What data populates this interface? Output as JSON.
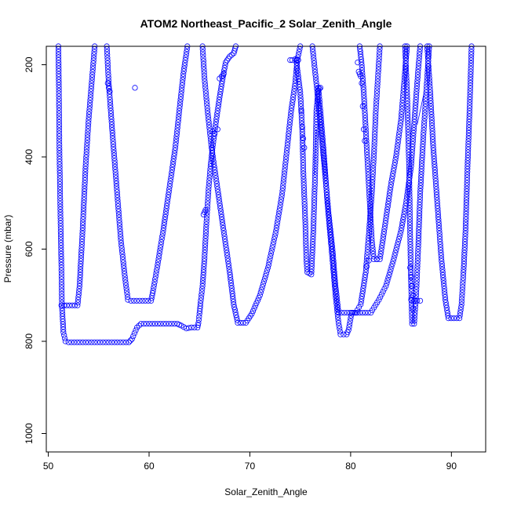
{
  "chart_data": {
    "type": "scatter",
    "title": "ATOM2 Northeast_Pacific_2 Solar_Zenith_Angle",
    "xlabel": "Solar_Zenith_Angle",
    "ylabel": "Pressure (mbar)",
    "xlim": [
      49.8,
      93.4
    ],
    "ylim": [
      1040,
      160
    ],
    "y_reversed": true,
    "x_ticks": [
      50,
      60,
      70,
      80,
      90
    ],
    "y_ticks": [
      200,
      400,
      600,
      800,
      1000
    ],
    "grid": false,
    "legend": "none",
    "marker": "open-circle",
    "color": "#0000ff",
    "series": [
      {
        "path": [
          [
            51.0,
            160
          ],
          [
            51.05,
            250
          ],
          [
            51.1,
            380
          ],
          [
            51.2,
            520
          ],
          [
            51.3,
            640
          ],
          [
            51.35,
            722
          ],
          [
            51.4,
            740
          ],
          [
            51.5,
            780
          ],
          [
            51.7,
            800
          ],
          [
            52.0,
            802
          ],
          [
            54.0,
            802
          ],
          [
            56.0,
            802
          ],
          [
            58.0,
            802
          ],
          [
            58.3,
            795
          ],
          [
            58.8,
            770
          ],
          [
            59.2,
            762
          ],
          [
            62.8,
            762
          ],
          [
            63.2,
            766
          ],
          [
            63.7,
            772
          ],
          [
            64.2,
            770
          ],
          [
            64.8,
            770
          ],
          [
            64.9,
            760
          ],
          [
            65.0,
            740
          ],
          [
            65.1,
            718
          ],
          [
            65.3,
            680
          ],
          [
            65.5,
            620
          ],
          [
            65.7,
            540
          ],
          [
            65.9,
            470
          ],
          [
            66.1,
            420
          ],
          [
            66.3,
            380
          ],
          [
            66.6,
            330
          ],
          [
            67.0,
            270
          ],
          [
            67.3,
            230
          ],
          [
            67.6,
            195
          ],
          [
            68.0,
            182
          ],
          [
            68.4,
            175
          ],
          [
            68.6,
            160
          ]
        ]
      },
      {
        "path": [
          [
            51.3,
            722
          ],
          [
            52.9,
            722
          ],
          [
            53.1,
            680
          ],
          [
            53.4,
            560
          ],
          [
            53.7,
            420
          ],
          [
            54.0,
            320
          ],
          [
            54.3,
            240
          ],
          [
            54.6,
            160
          ]
        ]
      },
      {
        "path": [
          [
            55.8,
            160
          ],
          [
            56.0,
            240
          ],
          [
            56.4,
            360
          ],
          [
            56.8,
            470
          ],
          [
            57.2,
            580
          ],
          [
            57.6,
            660
          ],
          [
            57.9,
            710
          ],
          [
            58.2,
            712
          ],
          [
            60.2,
            712
          ],
          [
            60.4,
            690
          ],
          [
            60.8,
            640
          ],
          [
            61.4,
            560
          ],
          [
            62.0,
            470
          ],
          [
            62.6,
            380
          ],
          [
            63.0,
            300
          ],
          [
            63.4,
            220
          ],
          [
            63.8,
            160
          ]
        ]
      },
      {
        "path": [
          [
            65.3,
            160
          ],
          [
            65.5,
            230
          ],
          [
            65.8,
            300
          ],
          [
            66.2,
            380
          ],
          [
            66.8,
            470
          ],
          [
            67.4,
            560
          ],
          [
            68.0,
            650
          ],
          [
            68.4,
            720
          ],
          [
            68.8,
            760
          ],
          [
            69.6,
            760
          ],
          [
            70.2,
            740
          ],
          [
            71.0,
            700
          ],
          [
            71.8,
            640
          ],
          [
            72.6,
            560
          ],
          [
            73.2,
            480
          ],
          [
            73.7,
            380
          ],
          [
            74.1,
            300
          ],
          [
            74.5,
            240
          ],
          [
            74.7,
            190
          ],
          [
            75.0,
            160
          ]
        ]
      },
      {
        "path": [
          [
            74.6,
            190
          ],
          [
            75.0,
            260
          ],
          [
            75.2,
            340
          ],
          [
            75.3,
            430
          ],
          [
            75.5,
            540
          ],
          [
            75.6,
            620
          ],
          [
            75.7,
            650
          ],
          [
            76.1,
            655
          ],
          [
            76.3,
            560
          ],
          [
            76.5,
            420
          ],
          [
            76.6,
            300
          ],
          [
            76.8,
            250
          ],
          [
            77.0,
            300
          ],
          [
            77.3,
            380
          ],
          [
            77.7,
            500
          ],
          [
            78.1,
            600
          ],
          [
            78.5,
            700
          ],
          [
            78.8,
            760
          ],
          [
            79.0,
            785
          ],
          [
            79.6,
            785
          ],
          [
            79.8,
            775
          ],
          [
            80.1,
            738
          ],
          [
            82.0,
            738
          ],
          [
            82.8,
            710
          ],
          [
            83.5,
            680
          ],
          [
            84.3,
            620
          ],
          [
            85.0,
            560
          ],
          [
            85.5,
            500
          ],
          [
            86.0,
            420
          ],
          [
            86.3,
            330
          ],
          [
            86.6,
            240
          ],
          [
            86.9,
            160
          ]
        ]
      },
      {
        "path": [
          [
            76.2,
            160
          ],
          [
            76.6,
            240
          ],
          [
            77.0,
            330
          ],
          [
            77.4,
            420
          ],
          [
            77.8,
            520
          ],
          [
            78.2,
            600
          ],
          [
            78.5,
            680
          ],
          [
            78.8,
            738
          ],
          [
            80.5,
            738
          ],
          [
            81.0,
            720
          ],
          [
            81.5,
            650
          ],
          [
            81.8,
            570
          ],
          [
            82.1,
            480
          ],
          [
            82.3,
            400
          ],
          [
            82.5,
            300
          ],
          [
            82.7,
            230
          ],
          [
            82.9,
            160
          ]
        ]
      },
      {
        "path": [
          [
            80.9,
            160
          ],
          [
            81.1,
            200
          ],
          [
            81.3,
            260
          ],
          [
            81.5,
            340
          ],
          [
            81.7,
            420
          ],
          [
            81.9,
            500
          ],
          [
            82.1,
            580
          ],
          [
            82.3,
            622
          ],
          [
            82.9,
            622
          ],
          [
            83.2,
            580
          ],
          [
            83.6,
            520
          ],
          [
            84.0,
            460
          ],
          [
            84.5,
            400
          ],
          [
            85.0,
            320
          ],
          [
            85.3,
            240
          ],
          [
            85.6,
            160
          ]
        ]
      },
      {
        "path": [
          [
            85.4,
            160
          ],
          [
            85.6,
            260
          ],
          [
            85.8,
            420
          ],
          [
            85.9,
            560
          ],
          [
            86.0,
            680
          ],
          [
            86.1,
            762
          ],
          [
            86.3,
            762
          ],
          [
            86.5,
            700
          ],
          [
            86.7,
            600
          ],
          [
            86.9,
            480
          ],
          [
            87.2,
            360
          ],
          [
            87.5,
            260
          ],
          [
            87.8,
            160
          ]
        ]
      },
      {
        "path": [
          [
            87.6,
            160
          ],
          [
            87.9,
            260
          ],
          [
            88.2,
            380
          ],
          [
            88.6,
            500
          ],
          [
            89.0,
            620
          ],
          [
            89.4,
            710
          ],
          [
            89.7,
            750
          ],
          [
            90.8,
            750
          ],
          [
            91.0,
            720
          ],
          [
            91.2,
            650
          ],
          [
            91.4,
            560
          ],
          [
            91.6,
            420
          ],
          [
            91.8,
            300
          ],
          [
            92.0,
            160
          ]
        ]
      },
      {
        "points": [
          [
            76.8,
            250
          ],
          [
            76.9,
            252
          ],
          [
            77.0,
            250
          ],
          [
            80.7,
            195
          ],
          [
            80.8,
            215
          ],
          [
            80.9,
            220
          ],
          [
            81.0,
            225
          ],
          [
            81.1,
            240
          ],
          [
            81.2,
            290
          ],
          [
            81.3,
            340
          ],
          [
            81.4,
            365
          ],
          [
            86.0,
            710
          ],
          [
            86.3,
            712
          ],
          [
            86.6,
            712
          ],
          [
            86.9,
            712
          ],
          [
            85.9,
            640
          ],
          [
            86.0,
            660
          ],
          [
            86.1,
            680
          ],
          [
            86.2,
            700
          ],
          [
            86.2,
            730
          ],
          [
            66.3,
            345
          ],
          [
            66.5,
            350
          ],
          [
            66.8,
            340
          ],
          [
            75.1,
            300
          ],
          [
            75.2,
            335
          ],
          [
            75.3,
            360
          ],
          [
            75.4,
            380
          ],
          [
            74.0,
            190
          ],
          [
            74.2,
            190
          ],
          [
            74.5,
            188
          ],
          [
            74.8,
            190
          ],
          [
            58.6,
            250
          ],
          [
            55.9,
            240
          ],
          [
            56.0,
            250
          ],
          [
            56.1,
            258
          ],
          [
            65.5,
            520
          ],
          [
            65.6,
            515
          ],
          [
            65.4,
            525
          ],
          [
            67.0,
            230
          ],
          [
            67.2,
            225
          ],
          [
            67.4,
            220
          ],
          [
            81.6,
            638
          ],
          [
            81.8,
            625
          ],
          [
            82.6,
            622
          ]
        ]
      },
      {
        "line": [
          [
            76.6,
            340
          ],
          [
            76.4,
            440
          ]
        ]
      },
      {
        "line": [
          [
            86.6,
            330
          ],
          [
            87.3,
            260
          ]
        ]
      }
    ]
  }
}
